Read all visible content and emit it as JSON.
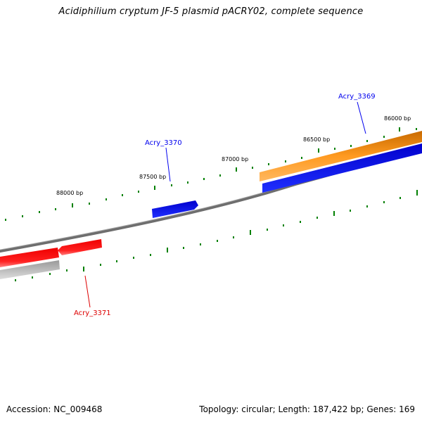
{
  "title": "Acidiphilium cryptum JF-5 plasmid pACRY02, complete sequence",
  "footer": {
    "accession": "Accession: NC_009468",
    "stats": "Topology: circular; Length: 187,422 bp; Genes: 169"
  },
  "scale": {
    "tick_labels": [
      "86000 bp",
      "86500 bp",
      "87000 bp",
      "87500 bp",
      "88000 bp"
    ]
  },
  "genes": [
    {
      "name": "Acry_3369",
      "color": "#0000ee"
    },
    {
      "name": "Acry_3370",
      "color": "#0000ee"
    },
    {
      "name": "Acry_3371",
      "color": "#dd0000"
    }
  ],
  "colors": {
    "backbone": "#808080",
    "tick": "#008000",
    "forward_gene": "#0000ee",
    "reverse_gene": "#ee0000",
    "orange_feature": "#ff8c00",
    "grey_feature": "#aaaaaa"
  }
}
